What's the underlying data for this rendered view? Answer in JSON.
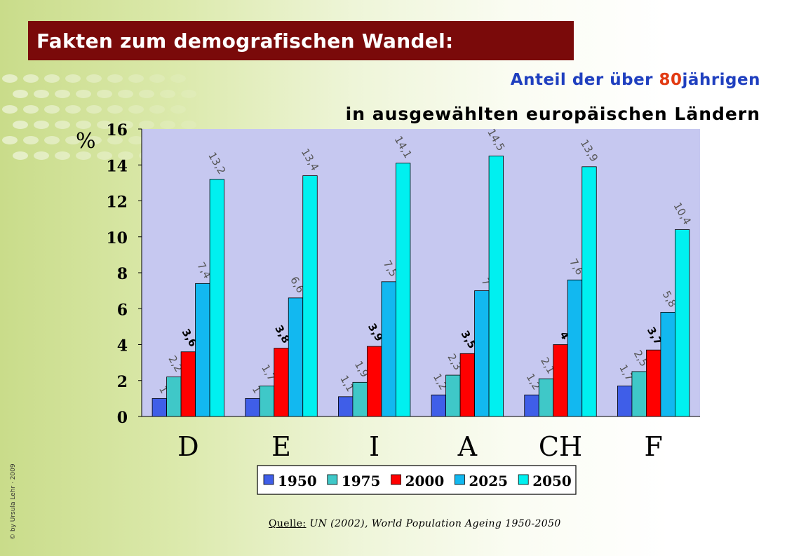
{
  "header": {
    "title": "Fakten zum demografischen Wandel:",
    "subtitle_prefix": "Anteil der über ",
    "subtitle_highlight": "80",
    "subtitle_suffix": "jährigen",
    "subtitle_line2": "in ausgewählten europäischen Ländern"
  },
  "colors": {
    "title_bg": "#7a0a0a",
    "subtitle_blue": "#1f3fbf",
    "subtitle_highlight": "#e23a12",
    "plot_bg": "#c6c8f0"
  },
  "chart_data": {
    "type": "bar",
    "ylabel": "%",
    "ylim": [
      0,
      16
    ],
    "yticks": [
      "0",
      "2",
      "4",
      "6",
      "8",
      "10",
      "12",
      "14",
      "16"
    ],
    "categories": [
      "D",
      "E",
      "I",
      "A",
      "CH",
      "F"
    ],
    "grid": false,
    "legend_position": "bottom",
    "series": [
      {
        "name": "1950",
        "color": "#3f5ee8",
        "values": [
          1,
          1,
          1.1,
          1.2,
          1.2,
          1.7
        ],
        "labels": [
          "1",
          "1",
          "1,1",
          "1,2",
          "1,2",
          "1,7"
        ],
        "label_bold": false
      },
      {
        "name": "1975",
        "color": "#3fc8c8",
        "values": [
          2.2,
          1.7,
          1.9,
          2.3,
          2.1,
          2.5
        ],
        "labels": [
          "2,2",
          "1,7",
          "1,9",
          "2,3",
          "2,1",
          "2,5"
        ],
        "label_bold": false
      },
      {
        "name": "2000",
        "color": "#ff0000",
        "values": [
          3.6,
          3.8,
          3.9,
          3.5,
          4,
          3.7
        ],
        "labels": [
          "3,6",
          "3,8",
          "3,9",
          "3,5",
          "4",
          "3,7"
        ],
        "label_bold": true
      },
      {
        "name": "2025",
        "color": "#12b8f0",
        "values": [
          7.4,
          6.6,
          7.5,
          7,
          7.6,
          5.8
        ],
        "labels": [
          "7,4",
          "6,6",
          "7,5",
          "7",
          "7,6",
          "5,8"
        ],
        "label_bold": false
      },
      {
        "name": "2050",
        "color": "#00f0f0",
        "values": [
          13.2,
          13.4,
          14.1,
          14.5,
          13.9,
          10.4
        ],
        "labels": [
          "13,2",
          "13,4",
          "14,1",
          "14,5",
          "13,9",
          "10,4"
        ],
        "label_bold": false
      }
    ]
  },
  "source": {
    "label": "Quelle:",
    "text": " UN (2002), World Population Ageing 1950-2050"
  },
  "copyright": "© by Ursula Lehr · 2009"
}
